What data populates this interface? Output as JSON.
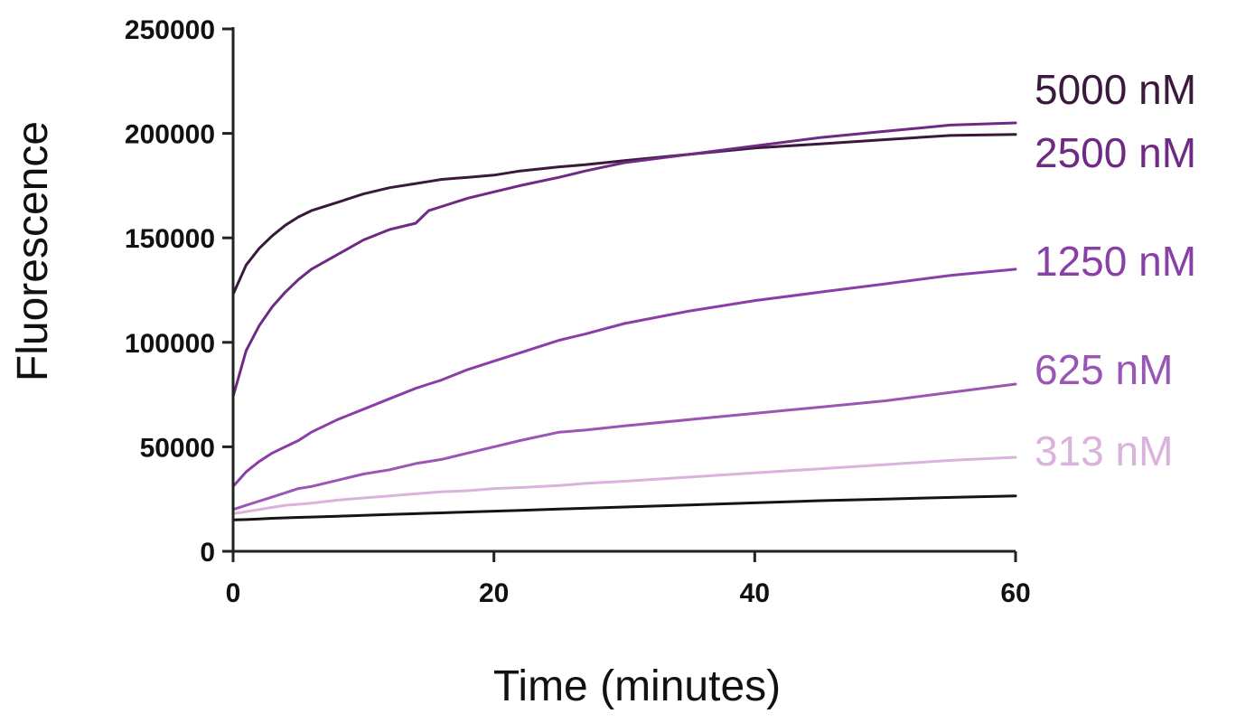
{
  "chart_data": {
    "type": "line",
    "title": "",
    "xlabel": "Time (minutes)",
    "ylabel": "Fluorescence",
    "xlim": [
      0,
      60
    ],
    "ylim": [
      0,
      250000
    ],
    "x_ticks": [
      0,
      20,
      40,
      60
    ],
    "x_tick_labels": [
      "0",
      "20",
      "40",
      "60"
    ],
    "y_ticks": [
      0,
      50000,
      100000,
      150000,
      200000,
      250000
    ],
    "y_tick_labels": [
      "0",
      "50000",
      "100000",
      "150000",
      "200000",
      "250000"
    ],
    "grid": false,
    "legend": "direct labels at right end of lines",
    "x": [
      0,
      1,
      2,
      3,
      4,
      5,
      6,
      8,
      10,
      12,
      14,
      15,
      16,
      18,
      20,
      22,
      25,
      27,
      30,
      35,
      40,
      45,
      50,
      55,
      60
    ],
    "series": [
      {
        "name": "5000 nM",
        "color": "#3a1a3c",
        "values": [
          123000,
          137000,
          145000,
          151000,
          156000,
          160000,
          163000,
          167000,
          171000,
          174000,
          176000,
          177000,
          178000,
          179000,
          180000,
          182000,
          184000,
          185000,
          187000,
          190000,
          193000,
          195000,
          197000,
          199000,
          199500
        ]
      },
      {
        "name": "2500 nM",
        "color": "#6e2a85",
        "values": [
          74000,
          96000,
          108000,
          117000,
          124000,
          130000,
          135000,
          142000,
          149000,
          154000,
          157000,
          163000,
          165000,
          169000,
          172000,
          175000,
          179000,
          182000,
          186000,
          190000,
          194000,
          198000,
          201000,
          204000,
          205000
        ]
      },
      {
        "name": "1250 nM",
        "color": "#8a3fa8",
        "values": [
          31000,
          38000,
          43000,
          47000,
          50000,
          53000,
          57000,
          63000,
          68000,
          73000,
          78000,
          80000,
          82000,
          87000,
          91000,
          95000,
          101000,
          104000,
          109000,
          115000,
          120000,
          124000,
          128000,
          132000,
          135000
        ]
      },
      {
        "name": "625 nM",
        "color": "#9a55b5",
        "values": [
          20000,
          22000,
          24000,
          26000,
          28000,
          30000,
          31000,
          34000,
          37000,
          39000,
          42000,
          43000,
          44000,
          47000,
          50000,
          53000,
          57000,
          58000,
          60000,
          63000,
          66000,
          69000,
          72000,
          76000,
          80000
        ]
      },
      {
        "name": "313 nM",
        "color": "#d9b3dc",
        "values": [
          18000,
          19000,
          20000,
          21000,
          22000,
          22500,
          23000,
          24500,
          25500,
          26500,
          27500,
          28000,
          28500,
          29000,
          30000,
          30500,
          31500,
          32500,
          33500,
          35500,
          37500,
          39500,
          41500,
          43500,
          45000
        ]
      },
      {
        "name": "",
        "color": "#141414",
        "values": [
          15000,
          15200,
          15500,
          15800,
          16000,
          16200,
          16400,
          16800,
          17200,
          17600,
          18000,
          18200,
          18400,
          18800,
          19200,
          19600,
          20200,
          20600,
          21200,
          22200,
          23200,
          24200,
          25000,
          25800,
          26500
        ]
      }
    ],
    "series_labels": [
      "5000 nM",
      "2500 nM",
      "1250 nM",
      "625 nM",
      "313 nM"
    ]
  }
}
